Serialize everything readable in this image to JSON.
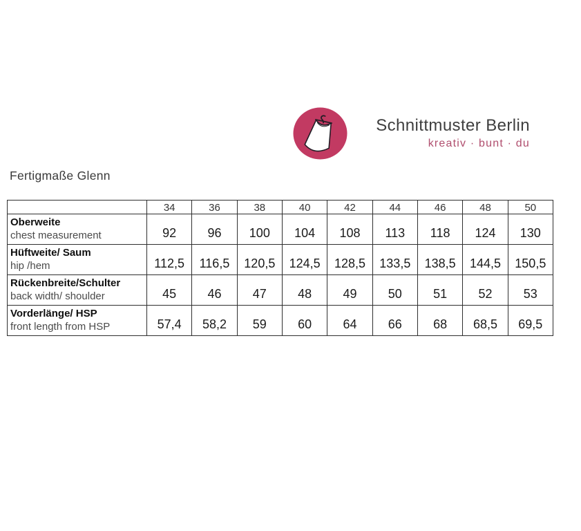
{
  "logo": {
    "brand": "Schnittmuster Berlin",
    "tagline": "kreativ · bunt · du",
    "accent_color": "#c23a62",
    "tagline_color": "#b04e6e",
    "icon": "dress-on-hanger-icon"
  },
  "page": {
    "title": "Fertigmaße Glenn"
  },
  "chart_data": {
    "type": "table",
    "title": "Fertigmaße Glenn",
    "sizes": [
      "34",
      "36",
      "38",
      "40",
      "42",
      "44",
      "46",
      "48",
      "50"
    ],
    "rows": [
      {
        "label_de": "Oberweite",
        "label_en": "chest measurement",
        "values": [
          "92",
          "96",
          "100",
          "104",
          "108",
          "113",
          "118",
          "124",
          "130"
        ]
      },
      {
        "label_de": "Hüftweite/ Saum",
        "label_en": "hip /hem",
        "values": [
          "112,5",
          "116,5",
          "120,5",
          "124,5",
          "128,5",
          "133,5",
          "138,5",
          "144,5",
          "150,5"
        ]
      },
      {
        "label_de": "Rückenbreite/Schulter",
        "label_en": "back width/ shoulder",
        "values": [
          "45",
          "46",
          "47",
          "48",
          "49",
          "50",
          "51",
          "52",
          "53"
        ]
      },
      {
        "label_de": "Vorderlänge/ HSP",
        "label_en": "front length from HSP",
        "values": [
          "57,4",
          "58,2",
          "59",
          "60",
          "64",
          "66",
          "68",
          "68,5",
          "69,5"
        ]
      }
    ]
  }
}
